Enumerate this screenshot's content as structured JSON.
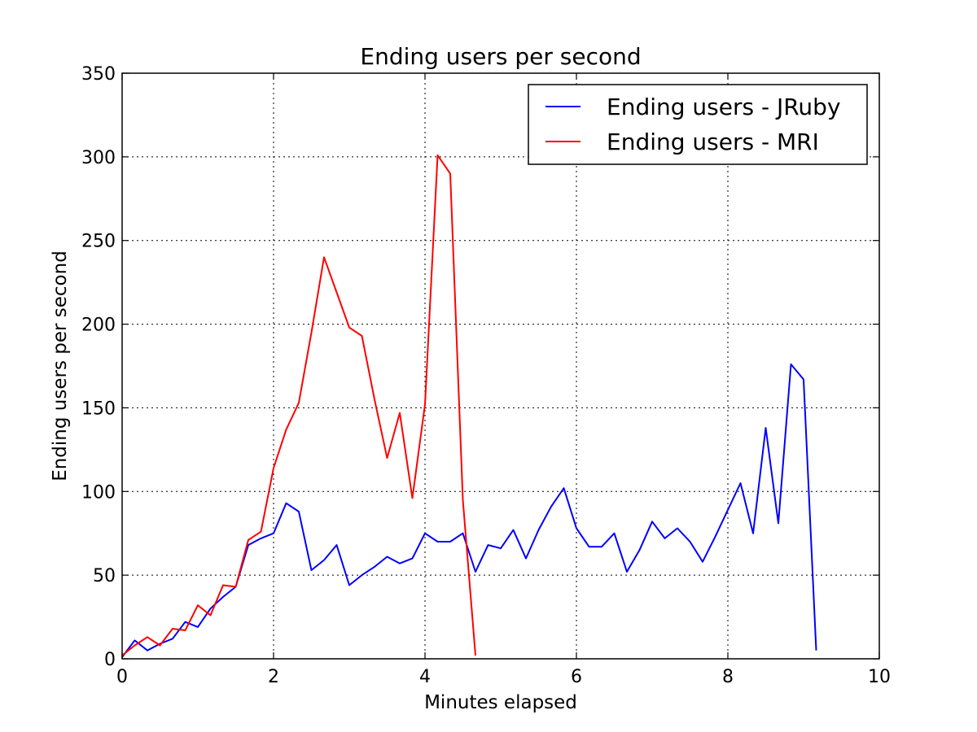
{
  "chart_data": {
    "type": "line",
    "title": "Ending users per second",
    "xlabel": "Minutes elapsed",
    "ylabel": "Ending users per second",
    "xlim": [
      0,
      10
    ],
    "ylim": [
      0,
      350
    ],
    "x_ticks": [
      0,
      2,
      4,
      6,
      8,
      10
    ],
    "y_ticks": [
      0,
      50,
      100,
      150,
      200,
      250,
      300,
      350
    ],
    "grid": true,
    "legend_position": "top-right",
    "series": [
      {
        "name": "Ending users - JRuby",
        "color": "#0000ff",
        "x": [
          0,
          0.167,
          0.333,
          0.5,
          0.667,
          0.833,
          1.0,
          1.167,
          1.333,
          1.5,
          1.667,
          1.833,
          2.0,
          2.167,
          2.333,
          2.5,
          2.667,
          2.833,
          3.0,
          3.167,
          3.333,
          3.5,
          3.667,
          3.833,
          4.0,
          4.167,
          4.333,
          4.5,
          4.667,
          4.833,
          5.0,
          5.167,
          5.333,
          5.5,
          5.667,
          5.833,
          6.0,
          6.167,
          6.333,
          6.5,
          6.667,
          6.833,
          7.0,
          7.167,
          7.333,
          7.5,
          7.667,
          7.833,
          8.0,
          8.167,
          8.333,
          8.5,
          8.667,
          8.833,
          9.0,
          9.167
        ],
        "values": [
          1,
          11,
          5,
          9,
          12,
          22,
          19,
          30,
          37,
          43,
          68,
          72,
          75,
          93,
          88,
          53,
          59,
          68,
          44,
          50,
          55,
          61,
          57,
          60,
          75,
          70,
          70,
          75,
          52,
          68,
          66,
          77,
          60,
          77,
          91,
          102,
          78,
          67,
          67,
          75,
          52,
          65,
          82,
          72,
          78,
          70,
          58,
          73,
          89,
          105,
          75,
          138,
          81,
          176,
          167,
          5
        ]
      },
      {
        "name": "Ending users - MRI",
        "color": "#ff0000",
        "x": [
          0,
          0.167,
          0.333,
          0.5,
          0.667,
          0.833,
          1.0,
          1.167,
          1.333,
          1.5,
          1.667,
          1.833,
          2.0,
          2.167,
          2.333,
          2.5,
          2.667,
          2.833,
          3.0,
          3.167,
          3.333,
          3.5,
          3.667,
          3.833,
          4.0,
          4.167,
          4.333,
          4.5,
          4.667
        ],
        "values": [
          2,
          8,
          13,
          8,
          18,
          17,
          32,
          26,
          44,
          43,
          71,
          76,
          114,
          137,
          153,
          195,
          240,
          219,
          198,
          193,
          155,
          120,
          147,
          96,
          152,
          301,
          290,
          95,
          2
        ]
      }
    ]
  }
}
